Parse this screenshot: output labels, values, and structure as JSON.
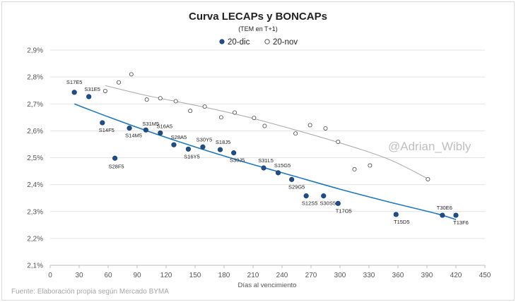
{
  "chart_data": {
    "type": "scatter",
    "title": "Curva LECAPs y BONCAPs",
    "subtitle": "(TEM en T+1)",
    "xlabel": "Días al vencimiento",
    "ylabel": "",
    "xlim": [
      0,
      450
    ],
    "ylim": [
      2.1,
      2.9
    ],
    "x_ticks": [
      0,
      30,
      60,
      90,
      120,
      150,
      180,
      210,
      240,
      270,
      300,
      330,
      360,
      390,
      420,
      450
    ],
    "y_ticks": [
      "2,1%",
      "2,2%",
      "2,3%",
      "2,4%",
      "2,5%",
      "2,6%",
      "2,7%",
      "2,8%",
      "2,9%"
    ],
    "grid": "horizontal",
    "legend_position": "top-center",
    "series": [
      {
        "name": "20-dic",
        "marker": "filled",
        "color": "#1f4e8c",
        "points": [
          {
            "label": "S17E5",
            "x": 25,
            "y": 2.743
          },
          {
            "label": "S31E5",
            "x": 40,
            "y": 2.727
          },
          {
            "label": "S14F5",
            "x": 54,
            "y": 2.63
          },
          {
            "label": "S28F5",
            "x": 67,
            "y": 2.498
          },
          {
            "label": "S14M5",
            "x": 82,
            "y": 2.61
          },
          {
            "label": "S31M5",
            "x": 99,
            "y": 2.603
          },
          {
            "label": "S16A5",
            "x": 114,
            "y": 2.592
          },
          {
            "label": "S28A5",
            "x": 128,
            "y": 2.548
          },
          {
            "label": "S16Y5",
            "x": 143,
            "y": 2.532
          },
          {
            "label": "S30Y5",
            "x": 158,
            "y": 2.54
          },
          {
            "label": "S18J5",
            "x": 176,
            "y": 2.53
          },
          {
            "label": "S30J5",
            "x": 190,
            "y": 2.518
          },
          {
            "label": "S31L5",
            "x": 221,
            "y": 2.462
          },
          {
            "label": "S15G5",
            "x": 236,
            "y": 2.444
          },
          {
            "label": "S29G5",
            "x": 250,
            "y": 2.419
          },
          {
            "label": "S12S5",
            "x": 265,
            "y": 2.358
          },
          {
            "label": "S30S5",
            "x": 283,
            "y": 2.358
          },
          {
            "label": "T17O5",
            "x": 298,
            "y": 2.33
          },
          {
            "label": "T15D5",
            "x": 358,
            "y": 2.289
          },
          {
            "label": "T30E6",
            "x": 406,
            "y": 2.286
          },
          {
            "label": "T13F6",
            "x": 420,
            "y": 2.286
          }
        ]
      },
      {
        "name": "20-nov",
        "marker": "hollow",
        "color": "#555555",
        "points": [
          {
            "x": 57,
            "y": 2.748
          },
          {
            "x": 71,
            "y": 2.78
          },
          {
            "x": 84,
            "y": 2.81
          },
          {
            "x": 100,
            "y": 2.716
          },
          {
            "x": 114,
            "y": 2.721
          },
          {
            "x": 130,
            "y": 2.71
          },
          {
            "x": 145,
            "y": 2.674
          },
          {
            "x": 160,
            "y": 2.69
          },
          {
            "x": 177,
            "y": 2.65
          },
          {
            "x": 191,
            "y": 2.668
          },
          {
            "x": 211,
            "y": 2.648
          },
          {
            "x": 222,
            "y": 2.618
          },
          {
            "x": 254,
            "y": 2.59
          },
          {
            "x": 269,
            "y": 2.621
          },
          {
            "x": 285,
            "y": 2.609
          },
          {
            "x": 298,
            "y": 2.559
          },
          {
            "x": 315,
            "y": 2.457
          },
          {
            "x": 331,
            "y": 2.471
          },
          {
            "x": 391,
            "y": 2.42
          }
        ]
      }
    ],
    "trendlines": [
      {
        "series": "20-dic",
        "color": "#1f77c4",
        "points": [
          [
            25,
            2.7
          ],
          [
            60,
            2.652
          ],
          [
            100,
            2.6
          ],
          [
            150,
            2.54
          ],
          [
            200,
            2.485
          ],
          [
            250,
            2.434
          ],
          [
            300,
            2.383
          ],
          [
            350,
            2.336
          ],
          [
            400,
            2.292
          ],
          [
            420,
            2.27
          ]
        ]
      },
      {
        "series": "20-nov",
        "color": "#a6a6a6",
        "points": [
          [
            57,
            2.768
          ],
          [
            100,
            2.731
          ],
          [
            150,
            2.695
          ],
          [
            200,
            2.655
          ],
          [
            250,
            2.607
          ],
          [
            300,
            2.555
          ],
          [
            350,
            2.495
          ],
          [
            391,
            2.422
          ]
        ]
      }
    ]
  },
  "watermark": "@Adrian_Wibly",
  "source": "Fuente: Elaboración propia según Mercado BYMA"
}
